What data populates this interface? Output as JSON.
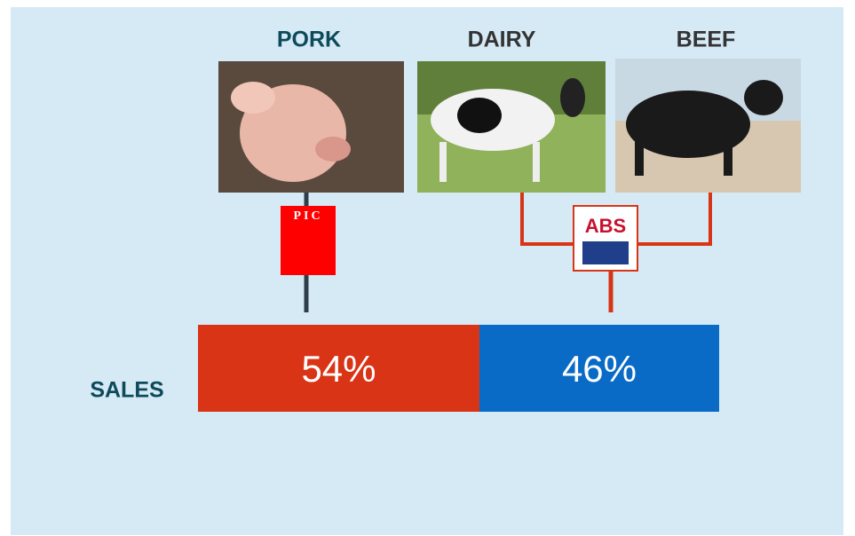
{
  "columns": [
    {
      "label": "PORK"
    },
    {
      "label": "DAIRY"
    },
    {
      "label": "BEEF"
    }
  ],
  "logos": [
    "PIC",
    "ABS"
  ],
  "sales": {
    "label": "SALES",
    "values": [
      54,
      46
    ],
    "value_labels": [
      "54%",
      "46%"
    ],
    "colors": [
      "#d93416",
      "#0a6bc6"
    ]
  }
}
